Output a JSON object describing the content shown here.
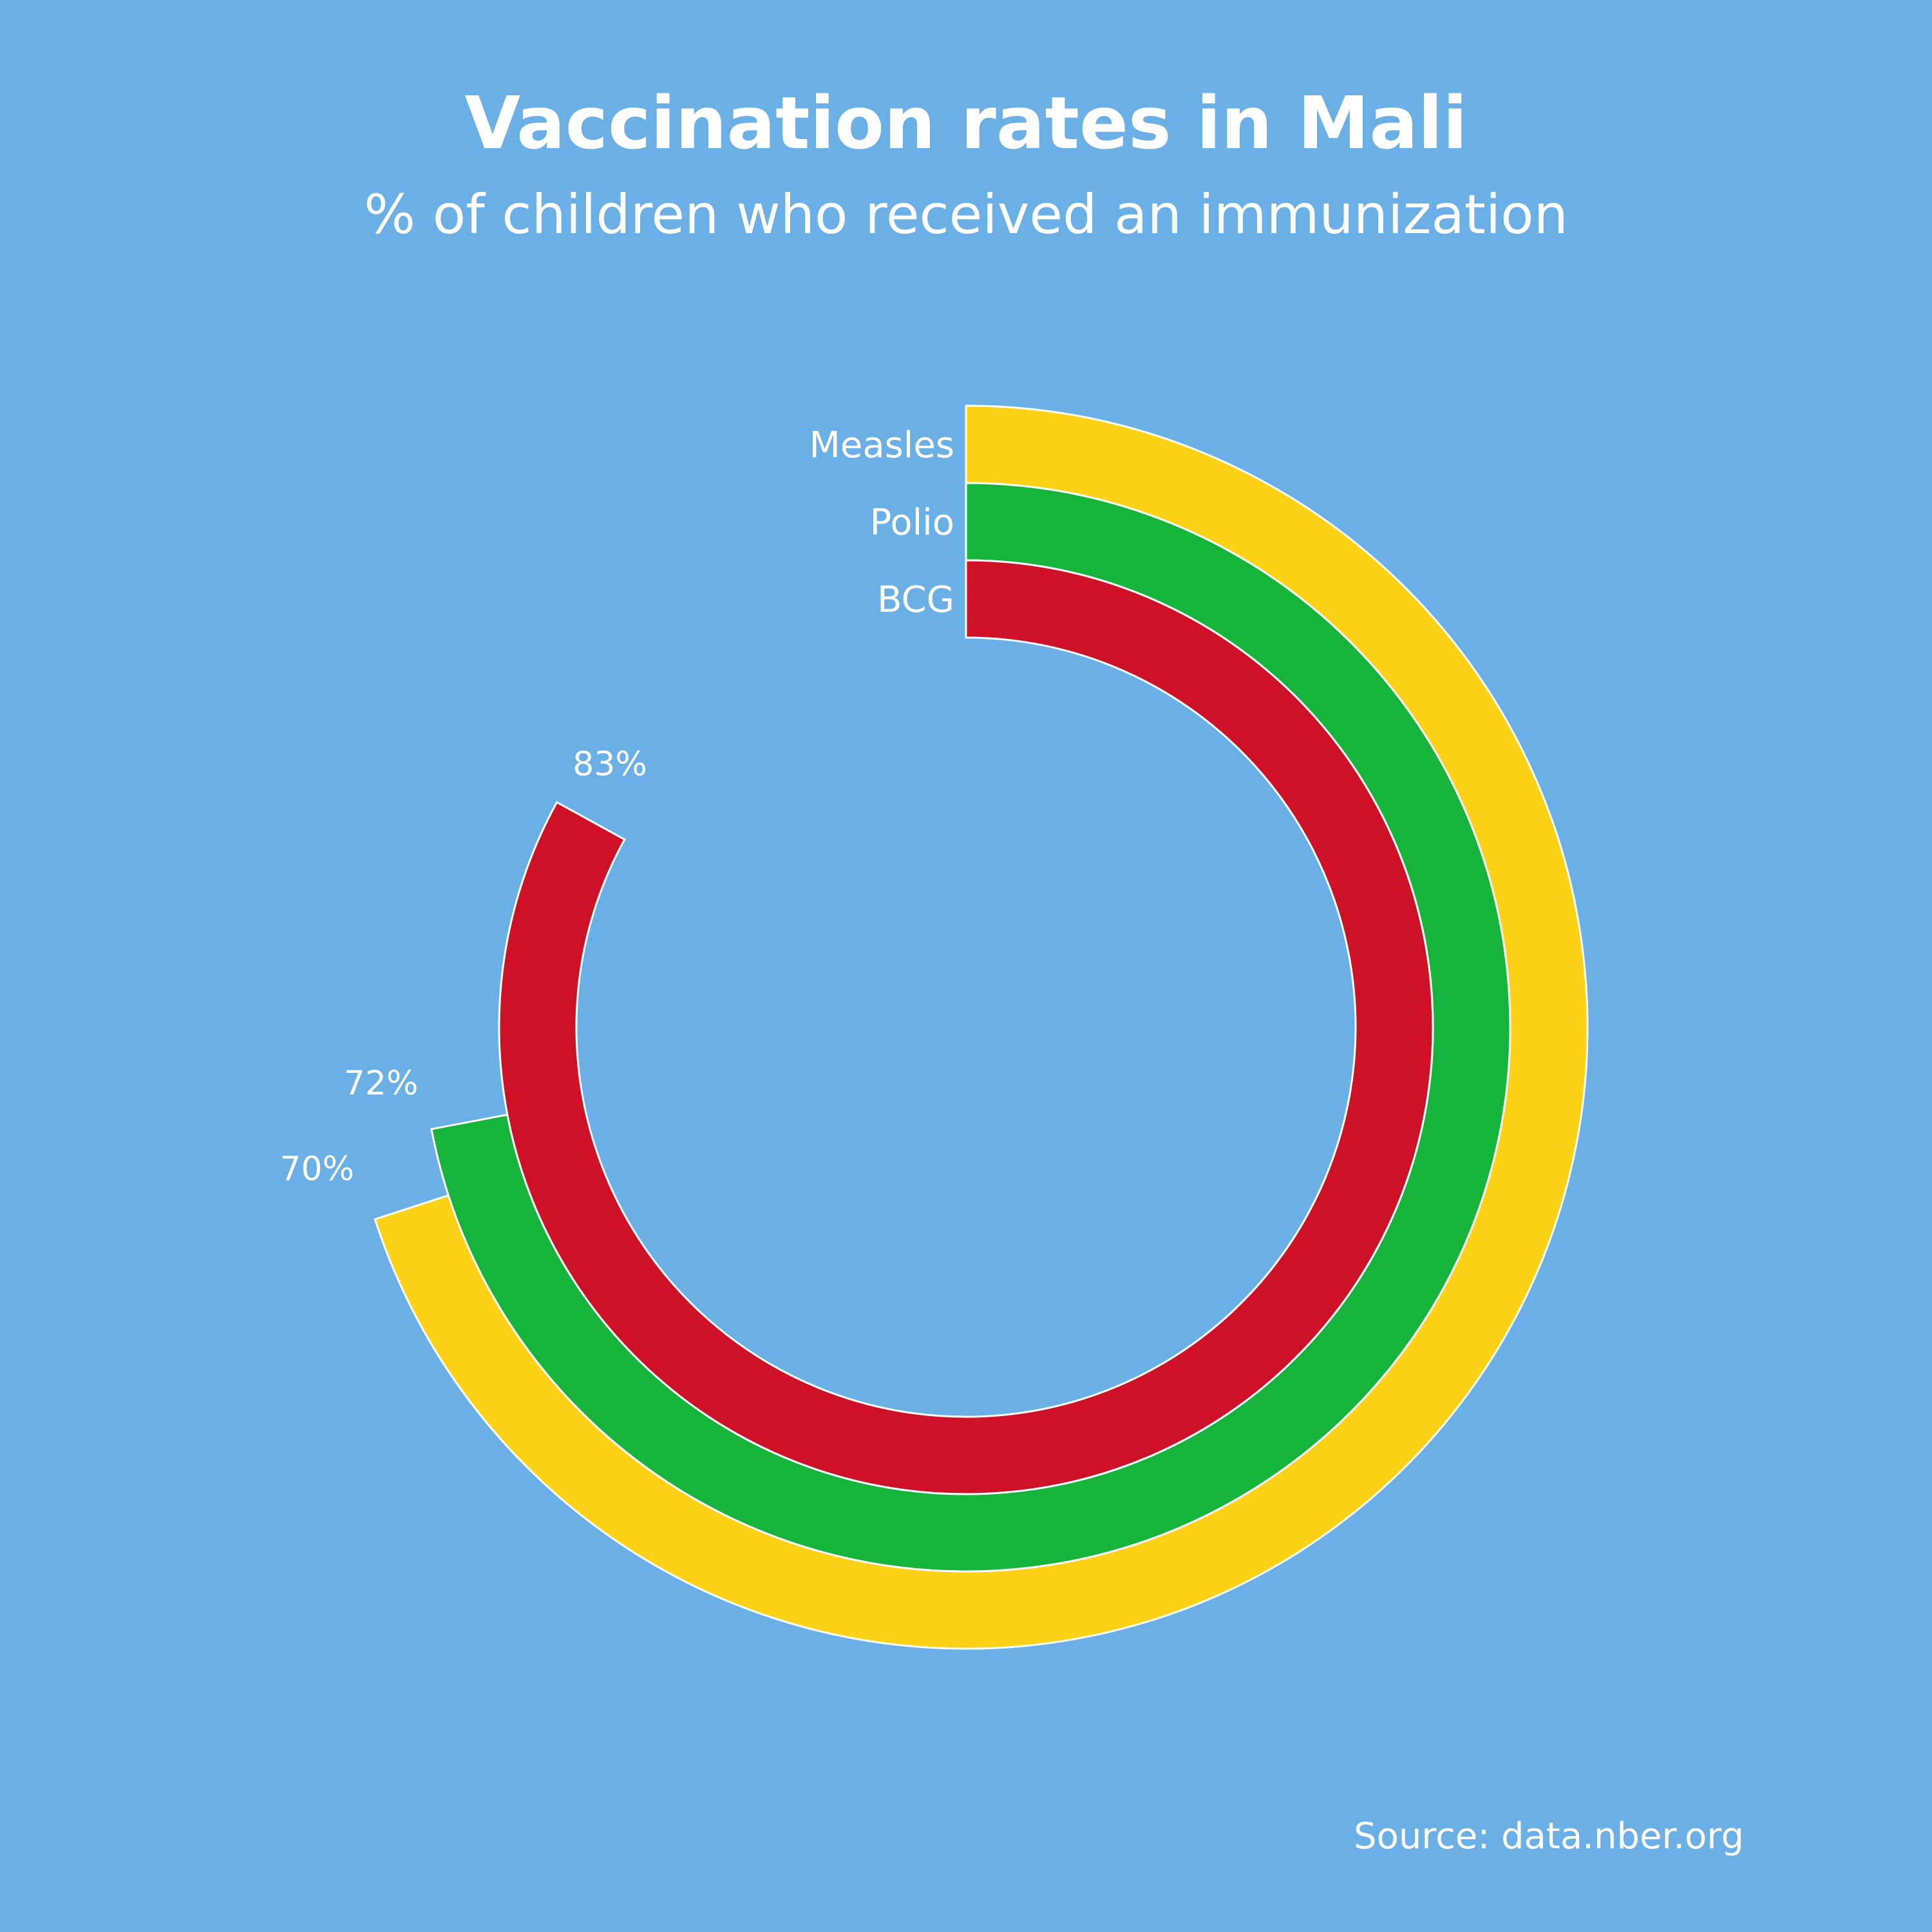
{
  "colors": {
    "background": "#6aafe5",
    "text": "#ffffff",
    "stroke": "#ffffff"
  },
  "chart_data": {
    "type": "radial-bar",
    "title": "Vaccination rates in Mali",
    "subtitle": "% of children who received an immunization",
    "max_value": 100,
    "direction": "clockwise-from-top",
    "series": [
      {
        "name": "Measles",
        "value": 70,
        "value_label": "70%",
        "color": "#fdd116"
      },
      {
        "name": "Polio",
        "value": 72,
        "value_label": "72%",
        "color": "#17b43c"
      },
      {
        "name": "BCG",
        "value": 83,
        "value_label": "83%",
        "color": "#ce1126"
      }
    ],
    "source": "Source: data.nber.org"
  }
}
